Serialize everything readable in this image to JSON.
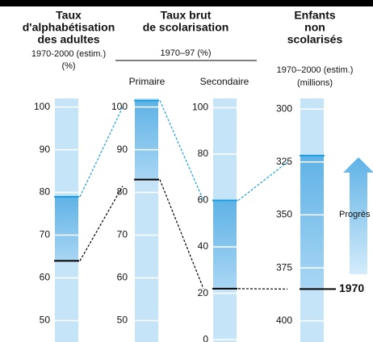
{
  "group": {
    "title": [
      "Taux brut",
      "de scolarisation"
    ],
    "subtitle": "1970–97 (%)"
  },
  "chart_data": [
    {
      "type": "range",
      "title": [
        "Taux",
        "d'alphabétisation",
        "des adultes"
      ],
      "subtitle": [
        "1970-2000 (estim.)",
        "(%)"
      ],
      "ylim": [
        45,
        102
      ],
      "yticks": [
        50,
        60,
        70,
        80,
        90,
        100
      ],
      "values": [
        64,
        79
      ],
      "colors": [
        "#000000",
        "#1a9ee0"
      ]
    },
    {
      "type": "range",
      "title": [
        "Primaire"
      ],
      "ylim": [
        45,
        102
      ],
      "yticks": [
        50,
        60,
        70,
        80,
        90,
        100
      ],
      "values": [
        83,
        101.5
      ],
      "colors": [
        "#000000",
        "#1a9ee0"
      ]
    },
    {
      "type": "range",
      "title": [
        "Secondaire"
      ],
      "ylim": [
        -1,
        104
      ],
      "yticks": [
        0,
        20,
        40,
        60,
        80,
        100
      ],
      "values": [
        22,
        60
      ],
      "colors": [
        "#000000",
        "#1a9ee0"
      ]
    },
    {
      "type": "range",
      "title": [
        "Enfants",
        "non",
        "scolarisés"
      ],
      "subtitle": [
        "1970–2000 (estim.)",
        "(millions)"
      ],
      "ylim": [
        295,
        410
      ],
      "inverted": true,
      "yticks": [
        300,
        325,
        350,
        375,
        400
      ],
      "values": [
        385,
        322
      ],
      "colors": [
        "#000000",
        "#1a9ee0"
      ],
      "start_label": "1970",
      "annotation": "Progrès"
    }
  ]
}
